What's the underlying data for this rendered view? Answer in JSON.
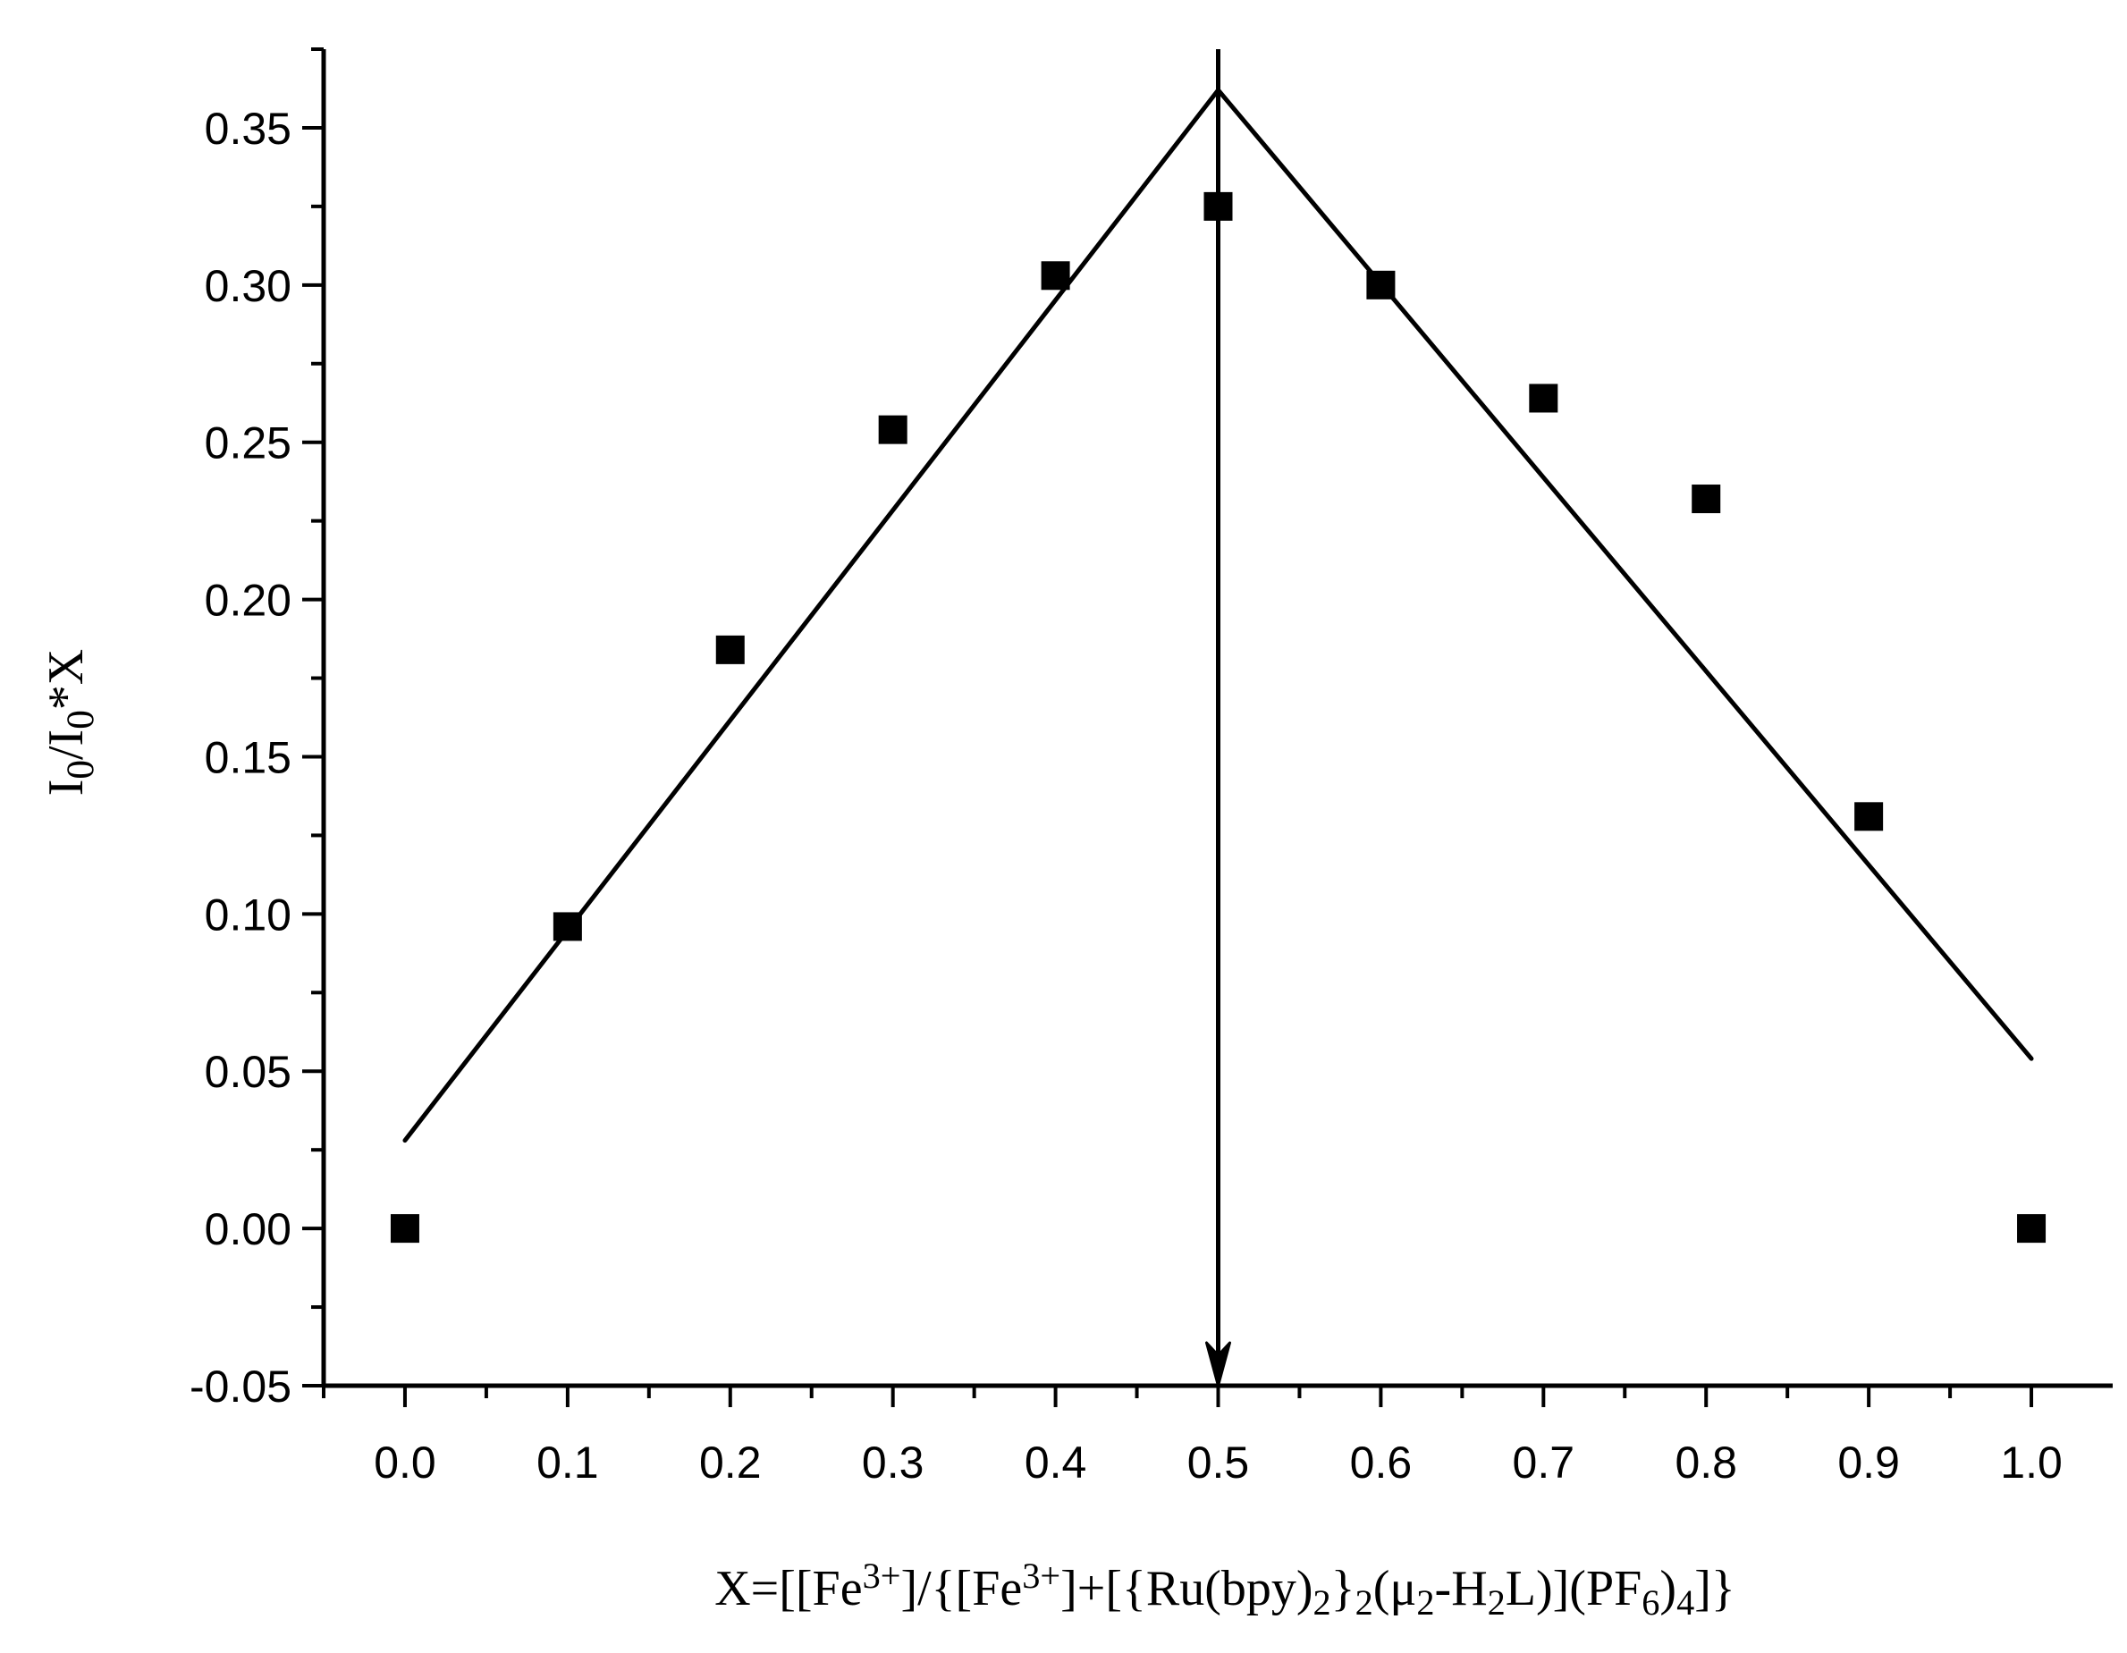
{
  "chart_data": {
    "type": "scatter",
    "title": "",
    "xlim": [
      -0.05,
      1.05
    ],
    "ylim": [
      -0.05,
      0.375
    ],
    "x_ticks": [
      "0.0",
      "0.1",
      "0.2",
      "0.3",
      "0.4",
      "0.5",
      "0.6",
      "0.7",
      "0.8",
      "0.9",
      "1.0"
    ],
    "x_tick_values": [
      0.0,
      0.1,
      0.2,
      0.3,
      0.4,
      0.5,
      0.6,
      0.7,
      0.8,
      0.9,
      1.0
    ],
    "y_ticks": [
      "-0.05",
      "0.00",
      "0.05",
      "0.10",
      "0.15",
      "0.20",
      "0.25",
      "0.30",
      "0.35"
    ],
    "y_tick_values": [
      -0.05,
      0.0,
      0.05,
      0.1,
      0.15,
      0.2,
      0.25,
      0.3,
      0.35
    ],
    "xlabel": {
      "parts": [
        {
          "t": "X=[[Fe",
          "s": "n"
        },
        {
          "t": "3+",
          "s": "sup"
        },
        {
          "t": "]/{[Fe",
          "s": "n"
        },
        {
          "t": "3+",
          "s": "sup"
        },
        {
          "t": "]+[{Ru(bpy)",
          "s": "n"
        },
        {
          "t": "2",
          "s": "sub"
        },
        {
          "t": "}",
          "s": "n"
        },
        {
          "t": "2",
          "s": "sub"
        },
        {
          "t": "(μ",
          "s": "n"
        },
        {
          "t": "2",
          "s": "sub"
        },
        {
          "t": "-H",
          "s": "n"
        },
        {
          "t": "2",
          "s": "sub"
        },
        {
          "t": "L)](PF",
          "s": "n"
        },
        {
          "t": "6",
          "s": "sub"
        },
        {
          "t": ")",
          "s": "n"
        },
        {
          "t": "4",
          "s": "sub"
        },
        {
          "t": "]}",
          "s": "n"
        }
      ]
    },
    "ylabel": {
      "parts": [
        {
          "t": "I",
          "s": "n"
        },
        {
          "t": "0",
          "s": "sub"
        },
        {
          "t": "/I",
          "s": "n"
        },
        {
          "t": "0",
          "s": "sub"
        },
        {
          "t": "*X",
          "s": "n"
        }
      ]
    },
    "series": [
      {
        "marker": "square",
        "x": [
          0.0,
          0.1,
          0.2,
          0.3,
          0.4,
          0.5,
          0.6,
          0.7,
          0.8,
          0.9,
          1.0
        ],
        "y": [
          0.0,
          0.096,
          0.184,
          0.254,
          0.303,
          0.325,
          0.3,
          0.264,
          0.232,
          0.131,
          0.0
        ]
      }
    ],
    "fit_lines": [
      {
        "x": [
          0.0,
          0.5
        ],
        "y": [
          0.028,
          0.362
        ]
      },
      {
        "x": [
          0.5,
          1.0
        ],
        "y": [
          0.362,
          0.054
        ]
      }
    ],
    "annotation_arrow": {
      "x": 0.5,
      "y_from": 0.375,
      "y_to": -0.05
    },
    "grid": false,
    "legend": "none",
    "colors": {
      "marks": "#000000",
      "background": "#ffffff"
    }
  }
}
